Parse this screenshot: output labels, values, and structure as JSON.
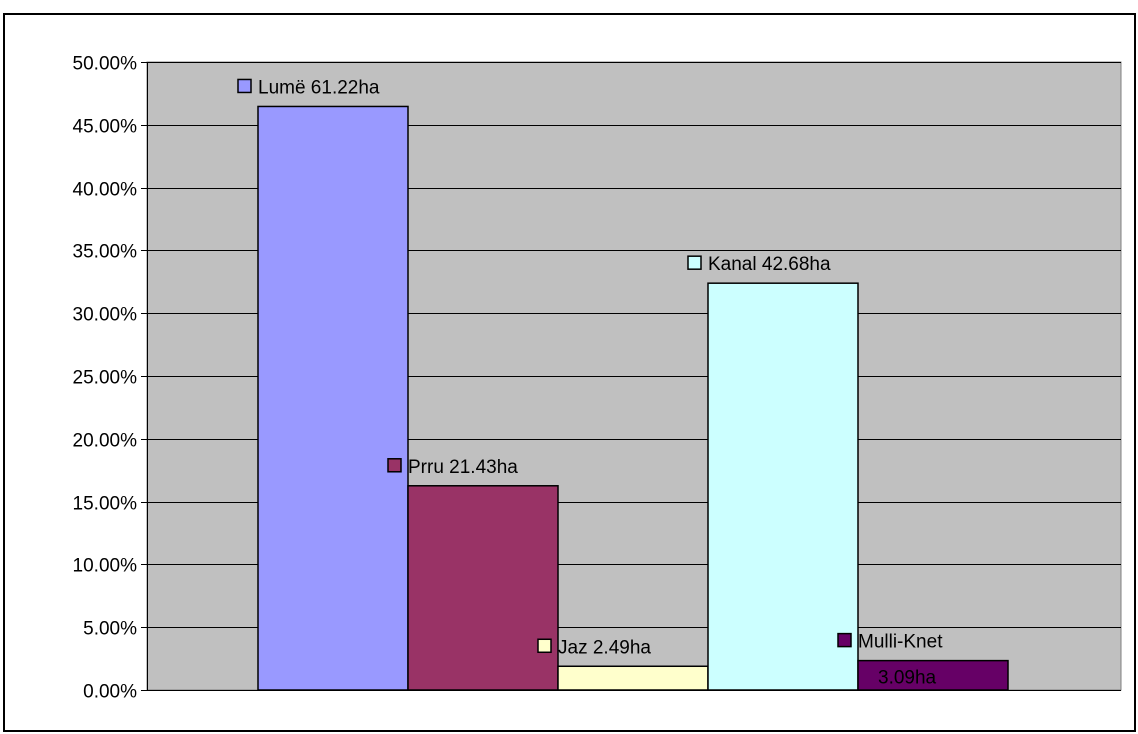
{
  "chart_data": {
    "type": "bar",
    "title": "",
    "xlabel": "",
    "ylabel": "",
    "ylim": [
      0,
      0.5
    ],
    "ytick_step": 0.05,
    "y_tick_labels": [
      "0.00%",
      "5.00%",
      "10.00%",
      "15.00%",
      "20.00%",
      "25.00%",
      "30.00%",
      "35.00%",
      "40.00%",
      "45.00%",
      "50.00%"
    ],
    "grid": true,
    "plot_background": "#c0c0c0",
    "series": [
      {
        "name": "Lumë",
        "value": 0.4646,
        "color": "#9999ff",
        "label_lines": [
          "Lumë 61.22ha"
        ]
      },
      {
        "name": "Prru",
        "value": 0.1626,
        "color": "#993366",
        "label_lines": [
          "Prru 21.43ha"
        ]
      },
      {
        "name": "Jaz",
        "value": 0.0189,
        "color": "#ffffcc",
        "label_lines": [
          "Jaz 2.49ha"
        ]
      },
      {
        "name": "Kanal",
        "value": 0.3239,
        "color": "#ccffff",
        "label_lines": [
          "Kanal 42.68ha"
        ]
      },
      {
        "name": "Mulli-Knet",
        "value": 0.0234,
        "color": "#660066",
        "label_lines": [
          "Mulli-Knet",
          "3.09ha"
        ]
      }
    ]
  }
}
